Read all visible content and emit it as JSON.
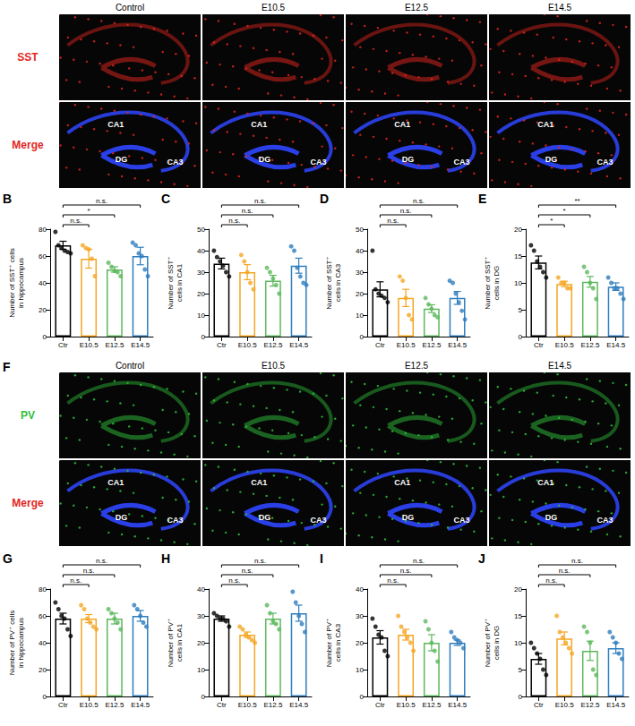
{
  "image_panels": [
    {
      "columns": [
        "Control",
        "E10.5",
        "E12.5",
        "E14.5"
      ],
      "rows": [
        {
          "label": "SST",
          "color": "#e3261f"
        },
        {
          "label": "Merge",
          "color": "#e3261f"
        }
      ],
      "regions": [
        "CA1",
        "DG",
        "CA3"
      ]
    },
    {
      "letter": "F",
      "columns": [
        "Control",
        "E10.5",
        "E12.5",
        "E14.5"
      ],
      "rows": [
        {
          "label": "PV",
          "color": "#2fbf3a"
        },
        {
          "label": "Merge",
          "color": "#e3261f"
        }
      ],
      "regions": [
        "CA1",
        "DG",
        "CA3"
      ]
    }
  ],
  "chart_data": [
    {
      "panel": "B",
      "type": "bar",
      "y_label": "Number of SST⁺ cells in hippocampus",
      "categories": [
        "Ctr",
        "E10.5",
        "E12.5",
        "E14.5"
      ],
      "colors": [
        "#000000",
        "#f5a623",
        "#5cb85c",
        "#2e7dbe"
      ],
      "values": [
        68,
        58,
        50,
        60
      ],
      "errors": [
        3,
        7,
        2,
        6.5
      ],
      "points": [
        [
          78,
          68,
          66,
          64,
          63,
          62
        ],
        [
          68,
          66,
          65,
          58,
          45
        ],
        [
          55,
          52,
          49,
          48,
          45
        ],
        [
          70,
          68,
          62,
          60,
          50,
          45
        ]
      ],
      "ylim": [
        0,
        80
      ],
      "yticks": [
        0,
        20,
        40,
        60,
        80
      ],
      "grid": false,
      "comparisons": [
        {
          "from": "Ctr",
          "to": "E10.5",
          "label": "n.s."
        },
        {
          "from": "Ctr",
          "to": "E12.5",
          "label": "*"
        },
        {
          "from": "Ctr",
          "to": "E14.5",
          "label": "n.s."
        }
      ]
    },
    {
      "panel": "C",
      "type": "bar",
      "y_label": "Number of SST⁺ cells in CA1",
      "categories": [
        "Ctr",
        "E10.5",
        "E12.5",
        "E14.5"
      ],
      "colors": [
        "#000000",
        "#f5a623",
        "#5cb85c",
        "#2e7dbe"
      ],
      "values": [
        34,
        30,
        26,
        33
      ],
      "errors": [
        2.5,
        3.5,
        2.5,
        3.5
      ],
      "points": [
        [
          40,
          37,
          35,
          33,
          30,
          28
        ],
        [
          38,
          35,
          30,
          25,
          22
        ],
        [
          32,
          30,
          27,
          24,
          20
        ],
        [
          42,
          40,
          32,
          28,
          25,
          24
        ]
      ],
      "ylim": [
        0,
        50
      ],
      "yticks": [
        0,
        10,
        20,
        30,
        40,
        50
      ],
      "grid": false,
      "comparisons": [
        {
          "from": "Ctr",
          "to": "E10.5",
          "label": "n.s."
        },
        {
          "from": "Ctr",
          "to": "E12.5",
          "label": "n.s."
        },
        {
          "from": "Ctr",
          "to": "E14.5",
          "label": "n.s."
        }
      ]
    },
    {
      "panel": "D",
      "type": "bar",
      "y_label": "Number of SST⁺ cells in CA3",
      "categories": [
        "Ctr",
        "E10.5",
        "E12.5",
        "E14.5"
      ],
      "colors": [
        "#000000",
        "#f5a623",
        "#5cb85c",
        "#2e7dbe"
      ],
      "values": [
        22,
        18,
        13,
        18
      ],
      "errors": [
        3.5,
        4,
        1.8,
        3
      ],
      "points": [
        [
          40,
          22,
          20,
          19,
          18,
          16
        ],
        [
          28,
          26,
          18,
          10,
          8
        ],
        [
          18,
          15,
          13,
          10,
          9
        ],
        [
          26,
          25,
          20,
          16,
          12,
          8
        ]
      ],
      "ylim": [
        0,
        50
      ],
      "yticks": [
        0,
        10,
        20,
        30,
        40,
        50
      ],
      "grid": false,
      "comparisons": [
        {
          "from": "Ctr",
          "to": "E10.5",
          "label": "n.s."
        },
        {
          "from": "Ctr",
          "to": "E12.5",
          "label": "n.s."
        },
        {
          "from": "Ctr",
          "to": "E14.5",
          "label": "n.s."
        }
      ]
    },
    {
      "panel": "E",
      "type": "bar",
      "y_label": "Number of SST⁺ cells in DG",
      "categories": [
        "Ctr",
        "E10.5",
        "E12.5",
        "E14.5"
      ],
      "colors": [
        "#000000",
        "#f5a623",
        "#5cb85c",
        "#2e7dbe"
      ],
      "values": [
        13.8,
        9.8,
        10.2,
        9.3
      ],
      "errors": [
        1.2,
        0.5,
        1,
        0.7
      ],
      "points": [
        [
          17,
          16,
          14,
          13,
          12,
          11
        ],
        [
          11,
          10,
          10,
          9,
          9
        ],
        [
          13,
          12,
          10,
          9,
          7
        ],
        [
          11,
          10,
          9,
          9,
          8,
          7
        ]
      ],
      "ylim": [
        0,
        20
      ],
      "yticks": [
        0,
        5,
        10,
        15,
        20
      ],
      "grid": false,
      "comparisons": [
        {
          "from": "Ctr",
          "to": "E10.5",
          "label": "*"
        },
        {
          "from": "Ctr",
          "to": "E12.5",
          "label": "*"
        },
        {
          "from": "Ctr",
          "to": "E14.5",
          "label": "**"
        }
      ]
    },
    {
      "panel": "G",
      "type": "bar",
      "y_label": "Number of PV⁺ cells in hippocampus",
      "categories": [
        "Ctr",
        "E10.5",
        "E12.5",
        "E14.5"
      ],
      "colors": [
        "#000000",
        "#f5a623",
        "#5cb85c",
        "#2e7dbe"
      ],
      "values": [
        58,
        58,
        58,
        60
      ],
      "errors": [
        4,
        3,
        4,
        4
      ],
      "points": [
        [
          70,
          65,
          60,
          58,
          50,
          45
        ],
        [
          68,
          65,
          58,
          55,
          52,
          50
        ],
        [
          65,
          62,
          58,
          55,
          50
        ],
        [
          68,
          65,
          60,
          55,
          52
        ]
      ],
      "ylim": [
        0,
        80
      ],
      "yticks": [
        0,
        20,
        40,
        60,
        80
      ],
      "grid": false,
      "comparisons": [
        {
          "from": "Ctr",
          "to": "E10.5",
          "label": "n.s."
        },
        {
          "from": "Ctr",
          "to": "E12.5",
          "label": "n.s."
        },
        {
          "from": "Ctr",
          "to": "E14.5",
          "label": "n.s."
        }
      ]
    },
    {
      "panel": "H",
      "type": "bar",
      "y_label": "Number of PV⁺ cells in CA1",
      "categories": [
        "Ctr",
        "E10.5",
        "E12.5",
        "E14.5"
      ],
      "colors": [
        "#000000",
        "#f5a623",
        "#5cb85c",
        "#2e7dbe"
      ],
      "values": [
        29,
        23,
        29,
        31
      ],
      "errors": [
        1,
        1,
        2,
        3
      ],
      "points": [
        [
          31,
          30,
          29,
          29,
          28,
          26
        ],
        [
          26,
          25,
          23,
          22,
          21,
          20
        ],
        [
          34,
          31,
          28,
          27,
          25
        ],
        [
          39,
          35,
          30,
          27,
          24
        ]
      ],
      "ylim": [
        0,
        40
      ],
      "yticks": [
        0,
        10,
        20,
        30,
        40
      ],
      "grid": false,
      "comparisons": [
        {
          "from": "Ctr",
          "to": "E10.5",
          "label": "n.s."
        },
        {
          "from": "Ctr",
          "to": "E12.5",
          "label": "n.s."
        },
        {
          "from": "Ctr",
          "to": "E14.5",
          "label": "n.s."
        }
      ]
    },
    {
      "panel": "I",
      "type": "bar",
      "y_label": "Number of PV⁺ cells in CA3",
      "categories": [
        "Ctr",
        "E10.5",
        "E12.5",
        "E14.5"
      ],
      "colors": [
        "#000000",
        "#f5a623",
        "#5cb85c",
        "#2e7dbe"
      ],
      "values": [
        22,
        23,
        20,
        20
      ],
      "errors": [
        2.5,
        2,
        3,
        1
      ],
      "points": [
        [
          29,
          26,
          23,
          22,
          17,
          15
        ],
        [
          30,
          26,
          24,
          22,
          20,
          17
        ],
        [
          28,
          25,
          20,
          17,
          13
        ],
        [
          24,
          22,
          21,
          20,
          18
        ]
      ],
      "ylim": [
        0,
        40
      ],
      "yticks": [
        0,
        10,
        20,
        30,
        40
      ],
      "grid": false,
      "comparisons": [
        {
          "from": "Ctr",
          "to": "E10.5",
          "label": "n.s."
        },
        {
          "from": "Ctr",
          "to": "E12.5",
          "label": "n.s."
        },
        {
          "from": "Ctr",
          "to": "E14.5",
          "label": "n.s."
        }
      ]
    },
    {
      "panel": "J",
      "type": "bar",
      "y_label": "Number of PV⁺ cells in DG",
      "categories": [
        "Ctr",
        "E10.5",
        "E12.5",
        "E14.5"
      ],
      "colors": [
        "#000000",
        "#f5a623",
        "#5cb85c",
        "#2e7dbe"
      ],
      "values": [
        7,
        10.8,
        8.5,
        9
      ],
      "errors": [
        1,
        1.2,
        1.8,
        1
      ],
      "points": [
        [
          10,
          9,
          8,
          7,
          5,
          4
        ],
        [
          15,
          12,
          11,
          10,
          9,
          8
        ],
        [
          13,
          12,
          10,
          5,
          4
        ],
        [
          12,
          11,
          10,
          8,
          7
        ]
      ],
      "ylim": [
        0,
        20
      ],
      "yticks": [
        0,
        5,
        10,
        15,
        20
      ],
      "grid": false,
      "comparisons": [
        {
          "from": "Ctr",
          "to": "E10.5",
          "label": "n.s."
        },
        {
          "from": "Ctr",
          "to": "E12.5",
          "label": "n.s."
        },
        {
          "from": "Ctr",
          "to": "E14.5",
          "label": "n.s."
        }
      ]
    }
  ]
}
